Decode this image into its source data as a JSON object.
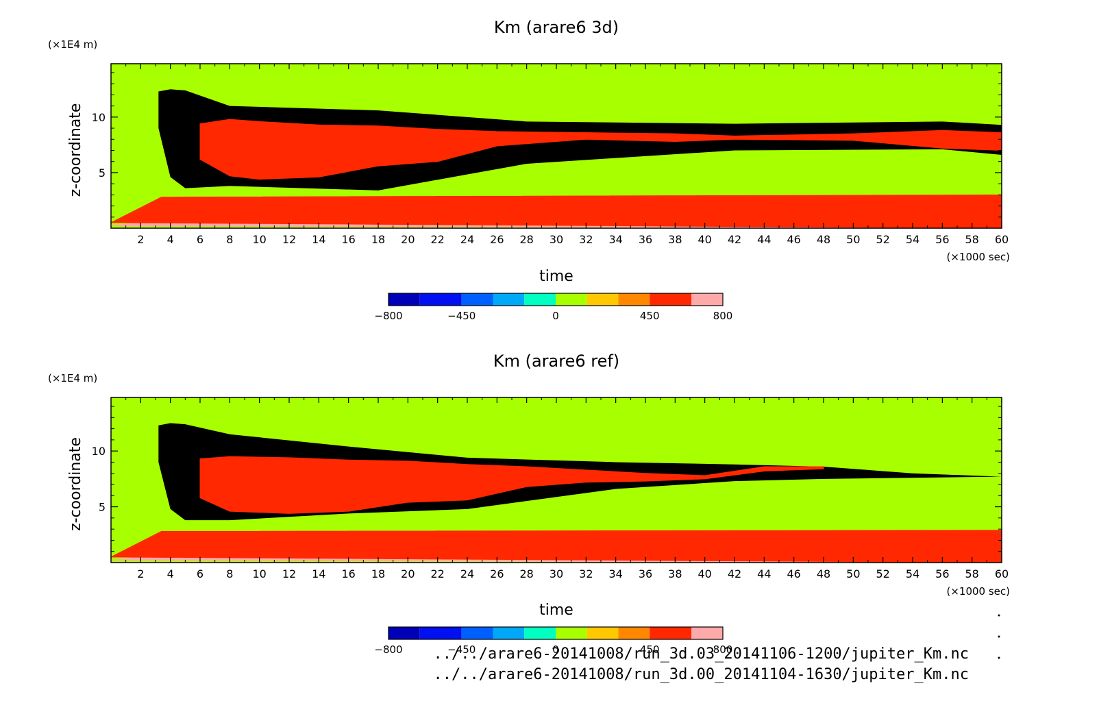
{
  "chart_data": [
    {
      "type": "heatmap",
      "title": "Km (arare6 3d)",
      "xlabel": "time",
      "xunit": "(×1000 sec)",
      "ylabel": "z-coordinate",
      "yunit": "(×1E4 m)",
      "xlim": [
        0,
        60
      ],
      "ylim": [
        0,
        14.8
      ],
      "x_ticks": [
        2,
        4,
        6,
        8,
        10,
        12,
        14,
        16,
        18,
        20,
        22,
        24,
        26,
        28,
        30,
        32,
        34,
        36,
        38,
        40,
        42,
        44,
        46,
        48,
        50,
        52,
        54,
        56,
        58,
        60
      ],
      "y_ticks": [
        5,
        10
      ],
      "bands": [
        {
          "level": 800,
          "x": [
            0,
            3.6,
            60,
            60
          ],
          "ytop": [
            0.2,
            0.8,
            2.6,
            0
          ]
        },
        {
          "level": 650,
          "x": [
            0,
            3.4,
            60,
            60
          ],
          "ytop": [
            0.5,
            2.8,
            3.0,
            0
          ]
        },
        {
          "level": 500,
          "x": [
            3.2,
            4,
            5,
            8,
            18,
            28,
            42,
            56,
            60
          ],
          "ytop": [
            12.3,
            12.5,
            12.4,
            11.0,
            10.6,
            9.6,
            9.4,
            9.6,
            9.3
          ],
          "ybot": [
            9.0,
            4.6,
            3.6,
            3.8,
            3.4,
            5.8,
            7.0,
            7.1,
            6.6
          ]
        },
        {
          "level": 650,
          "x": [
            6,
            8,
            10,
            14,
            18,
            22,
            26,
            32,
            38,
            42,
            50,
            56,
            60
          ],
          "ytop": [
            9.4,
            9.8,
            9.6,
            9.3,
            9.2,
            8.9,
            8.7,
            8.6,
            8.5,
            8.3,
            8.5,
            8.8,
            8.6
          ],
          "ybot": [
            6.2,
            4.7,
            4.4,
            4.6,
            5.6,
            6.0,
            7.4,
            8.0,
            7.8,
            8.0,
            7.9,
            7.2,
            7.0
          ]
        }
      ],
      "colorbar": {
        "levels": [
          -800,
          -650,
          -450,
          -300,
          -150,
          0,
          150,
          300,
          450,
          650,
          800
        ],
        "tick_labels": [
          "-800",
          "-450",
          "0",
          "450",
          "800"
        ]
      }
    },
    {
      "type": "heatmap",
      "title": "Km (arare6 ref)",
      "xlabel": "time",
      "xunit": "(×1000 sec)",
      "ylabel": "z-coordinate",
      "yunit": "(×1E4 m)",
      "xlim": [
        0,
        60
      ],
      "ylim": [
        0,
        14.8
      ],
      "x_ticks": [
        2,
        4,
        6,
        8,
        10,
        12,
        14,
        16,
        18,
        20,
        22,
        24,
        26,
        28,
        30,
        32,
        34,
        36,
        38,
        40,
        42,
        44,
        46,
        48,
        50,
        52,
        54,
        56,
        58,
        60
      ],
      "y_ticks": [
        5,
        10
      ],
      "bands": [
        {
          "level": 800,
          "x": [
            0,
            3.6,
            60,
            60
          ],
          "ytop": [
            0.2,
            0.8,
            2.2,
            0
          ]
        },
        {
          "level": 650,
          "x": [
            0,
            3.4,
            60,
            60
          ],
          "ytop": [
            0.5,
            2.8,
            2.9,
            0
          ]
        },
        {
          "level": 500,
          "x": [
            3.2,
            4,
            5,
            8,
            16,
            24,
            34,
            42,
            48,
            54,
            60
          ],
          "ytop": [
            12.3,
            12.5,
            12.4,
            11.5,
            10.4,
            9.4,
            9.0,
            8.8,
            8.6,
            8.0,
            7.7
          ],
          "ybot": [
            9.0,
            4.8,
            3.8,
            3.8,
            4.4,
            4.8,
            6.6,
            7.3,
            7.5,
            7.6,
            7.7
          ]
        },
        {
          "level": 650,
          "x": [
            6,
            8,
            12,
            16,
            20,
            24,
            28,
            32,
            36,
            40,
            44,
            48
          ],
          "ytop": [
            9.3,
            9.5,
            9.4,
            9.2,
            9.1,
            8.8,
            8.6,
            8.3,
            8.0,
            7.8,
            8.6,
            8.6
          ],
          "ybot": [
            5.8,
            4.6,
            4.4,
            4.6,
            5.4,
            5.6,
            6.8,
            7.2,
            7.3,
            7.5,
            8.2,
            8.4
          ]
        }
      ],
      "colorbar": {
        "levels": [
          -800,
          -650,
          -450,
          -300,
          -150,
          0,
          150,
          300,
          450,
          650,
          800
        ],
        "tick_labels": [
          "-800",
          "-450",
          "0",
          "450",
          "800"
        ]
      }
    }
  ],
  "colors": {
    "-800": "#7a00b0",
    "-650": "#0000b8",
    "-450": "#0010f0",
    "-300": "#0060ff",
    "-150": "#00a8f8",
    "0": "#00ffc0",
    "150": "#a8ff00",
    "300": "#ffc800",
    "450": "#ff8800",
    "650": "#ff2800",
    "800": "#ffaaaa"
  },
  "footer": {
    "line1": "../../arare6-20141008/run_3d.03_20141106-1200/jupiter_Km.nc",
    "line2": "../../arare6-20141008/run_3d.00_20141104-1630/jupiter_Km.nc"
  }
}
